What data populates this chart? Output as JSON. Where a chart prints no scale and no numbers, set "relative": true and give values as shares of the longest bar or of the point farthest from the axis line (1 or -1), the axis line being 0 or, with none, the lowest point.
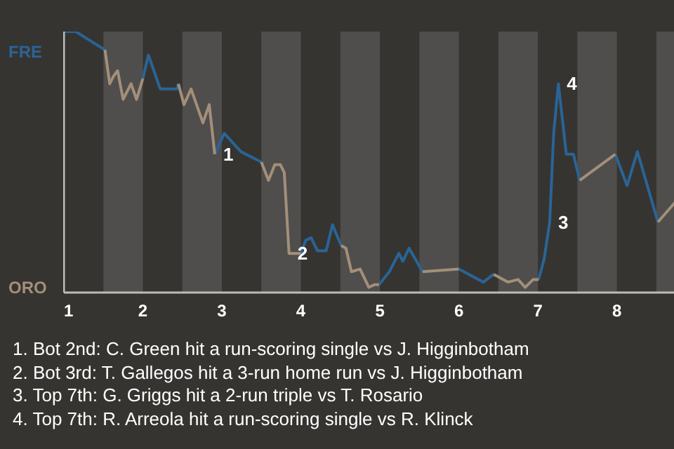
{
  "chart_data": {
    "type": "line",
    "relative": true,
    "xlim": [
      1,
      8.75
    ],
    "xticks": [
      1,
      2,
      3,
      4,
      5,
      6,
      7,
      8
    ],
    "bands": [
      {
        "axis": "x",
        "from": 1.5,
        "to": 2,
        "color": "#4f4e4c"
      },
      {
        "axis": "x",
        "from": 2.5,
        "to": 3,
        "color": "#4f4e4c"
      },
      {
        "axis": "x",
        "from": 3.5,
        "to": 4,
        "color": "#4f4e4c"
      },
      {
        "axis": "x",
        "from": 4.5,
        "to": 5,
        "color": "#4f4e4c"
      },
      {
        "axis": "x",
        "from": 5.5,
        "to": 6,
        "color": "#4f4e4c"
      },
      {
        "axis": "x",
        "from": 6.5,
        "to": 7,
        "color": "#4f4e4c"
      },
      {
        "axis": "x",
        "from": 7.5,
        "to": 8,
        "color": "#4f4e4c"
      },
      {
        "axis": "x",
        "from": 8.5,
        "to": 8.75,
        "color": "#4f4e4c"
      }
    ],
    "series": [
      {
        "color": "#2a6496",
        "x": [
          1.0,
          1.15,
          1.36,
          1.52,
          null,
          2.0,
          2.07,
          2.22,
          2.43,
          2.45,
          null,
          2.91,
          3.03,
          3.24,
          3.5,
          null,
          4.0,
          4.06,
          4.13,
          4.21,
          4.32,
          4.4,
          4.51,
          null,
          4.99,
          5.12,
          5.24,
          5.29,
          5.37,
          5.54,
          null,
          6.0,
          6.31,
          6.44,
          null,
          7.01,
          7.08,
          7.15,
          7.2,
          7.26,
          7.36,
          7.45,
          7.53,
          null,
          7.98,
          8.13,
          8.26,
          8.52
        ],
        "values": [
          1.0,
          1.0,
          0.96,
          0.93,
          null,
          0.82,
          0.91,
          0.78,
          0.78,
          0.8,
          null,
          0.53,
          0.61,
          0.54,
          0.5,
          null,
          0.15,
          0.2,
          0.21,
          0.16,
          0.16,
          0.26,
          0.18,
          null,
          0.03,
          0.08,
          0.15,
          0.12,
          0.17,
          0.08,
          null,
          0.09,
          0.04,
          0.07,
          null,
          0.05,
          0.13,
          0.27,
          0.61,
          0.8,
          0.53,
          0.53,
          0.43,
          null,
          0.53,
          0.41,
          0.54,
          0.27
        ]
      },
      {
        "color": "#a38f7a",
        "x": [
          1.52,
          1.58,
          1.63,
          1.68,
          1.75,
          1.85,
          1.92,
          2.0,
          null,
          2.45,
          2.52,
          2.61,
          2.76,
          2.84,
          2.91,
          null,
          3.5,
          3.59,
          3.67,
          3.74,
          3.79,
          3.85,
          4.0,
          null,
          4.51,
          4.57,
          4.64,
          4.75,
          4.86,
          4.93,
          4.99,
          null,
          5.54,
          6.0,
          null,
          6.44,
          6.62,
          6.75,
          6.84,
          6.94,
          7.01,
          null,
          7.53,
          7.98,
          null,
          8.52,
          8.75
        ],
        "values": [
          0.93,
          0.8,
          0.83,
          0.85,
          0.74,
          0.8,
          0.74,
          0.82,
          null,
          0.8,
          0.72,
          0.78,
          0.65,
          0.72,
          0.53,
          null,
          0.5,
          0.43,
          0.49,
          0.49,
          0.46,
          0.15,
          0.15,
          null,
          0.18,
          0.17,
          0.08,
          0.09,
          0.02,
          0.03,
          0.03,
          null,
          0.08,
          0.09,
          null,
          0.07,
          0.04,
          0.05,
          0.02,
          0.05,
          0.05,
          null,
          0.43,
          0.53,
          null,
          0.27,
          0.35
        ]
      }
    ],
    "annotations": [
      "FRE",
      "ORO",
      {
        "text": "1",
        "x": 2.91,
        "y": 0.53
      },
      {
        "text": "2",
        "x": 3.85,
        "y": 0.15
      },
      {
        "text": "3",
        "x": 7.15,
        "y": 0.27
      },
      {
        "text": "4",
        "x": 7.26,
        "y": 0.8
      },
      "1. Bot 2nd: C. Green hit a run-scoring single vs J. Higginbotham",
      "2. Bot 3rd: T. Gallegos hit a 3-run home run vs J. Higginbotham",
      "3. Top 7th: G. Griggs hit a 2-run triple vs T. Rosario",
      "4. Top 7th: R. Arreola hit a run-scoring single vs R. Klinck"
    ]
  }
}
